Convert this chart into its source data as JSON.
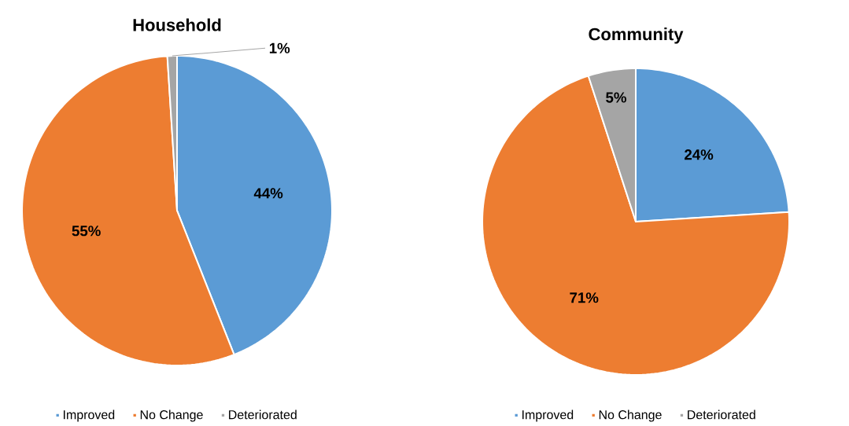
{
  "chart_data": [
    {
      "type": "pie",
      "title": "Household",
      "categories": [
        "Improved",
        "No Change",
        "Deteriorated"
      ],
      "values": [
        44,
        55,
        1
      ],
      "colors": [
        "#5b9bd5",
        "#ed7d31",
        "#a5a5a5"
      ],
      "value_labels": [
        "44%",
        "55%",
        "1%"
      ],
      "legend": "bottom"
    },
    {
      "type": "pie",
      "title": "Community",
      "categories": [
        "Improved",
        "No Change",
        "Deteriorated"
      ],
      "values": [
        24,
        71,
        5
      ],
      "colors": [
        "#5b9bd5",
        "#ed7d31",
        "#a5a5a5"
      ],
      "value_labels": [
        "24%",
        "71%",
        "5%"
      ],
      "legend": "bottom"
    }
  ]
}
